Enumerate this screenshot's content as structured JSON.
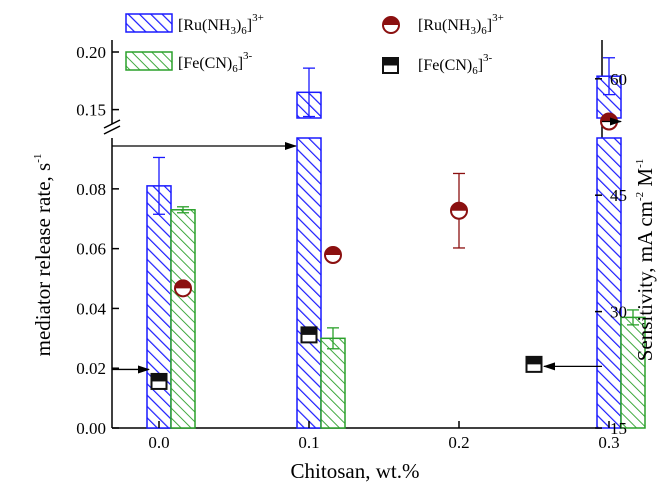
{
  "chart_data": {
    "type": "bar",
    "xlabel": "Chitosan,  wt.%",
    "ylabel_left": "mediator release rate, s",
    "ylabel_left_sup": "-1",
    "ylabel_right_parts": [
      "Sensitivity, mA cm",
      "-2",
      " M",
      "-1"
    ],
    "x_ticks": [
      "0.0",
      "0.1",
      "0.2",
      "0.3"
    ],
    "y_left_lower_ticks": [
      "0.00",
      "0.02",
      "0.04",
      "0.06",
      "0.08"
    ],
    "y_left_upper_ticks": [
      "0.15",
      "0.20"
    ],
    "y_right_ticks": [
      "15",
      "30",
      "45",
      "60"
    ],
    "y_left_lower_range": [
      0,
      0.093
    ],
    "y_left_upper_range": [
      0.1375,
      0.2
    ],
    "y_right_range": [
      15,
      65
    ],
    "axis_break": true,
    "legend": {
      "ru": {
        "text": "[Ru(NH",
        "sub": "3",
        "mid": ")",
        "sub2": "6",
        "end": "]",
        "sup": "3+"
      },
      "fe": {
        "text": "[Fe(CN)",
        "sub": "6",
        "end": "]",
        "sup": "3-"
      }
    },
    "bars_ru": [
      {
        "x": 0.0,
        "value": 0.081,
        "err": 0.0095
      },
      {
        "x": 0.1,
        "value": 0.165,
        "err": 0.021
      },
      {
        "x": 0.3,
        "value": 0.179,
        "err": 0.016
      }
    ],
    "bars_fe": [
      {
        "x": 0.0,
        "value": 0.073,
        "err": 0.001
      },
      {
        "x": 0.1,
        "value": 0.03,
        "err": 0.0035
      },
      {
        "x": 0.3,
        "value": 0.037,
        "err": 0.0025
      }
    ],
    "sens_ru": [
      {
        "x": 0.0,
        "value": 33.0
      },
      {
        "x": 0.1,
        "value": 37.3
      },
      {
        "x": 0.2,
        "value": 43.0,
        "err": 4.8
      },
      {
        "x": 0.3,
        "value": 54.5
      }
    ],
    "sens_fe": [
      {
        "x": 0.0,
        "value": 21.0
      },
      {
        "x": 0.1,
        "value": 27.0
      },
      {
        "x": 0.25,
        "value": 23.2
      }
    ],
    "colors": {
      "ru_bar": "#1a1aff",
      "fe_bar": "#2aa02a",
      "ru_marker": "#8b1010",
      "fe_marker": "#111111",
      "axis": "#000000"
    },
    "arrows": [
      {
        "direction": "left-axis",
        "target": "bars_ru"
      },
      {
        "direction": "left-axis",
        "target": "sens_fe"
      },
      {
        "direction": "right-axis",
        "target": "sens_ru"
      },
      {
        "direction": "right-axis",
        "target": "sens_fe"
      }
    ]
  }
}
